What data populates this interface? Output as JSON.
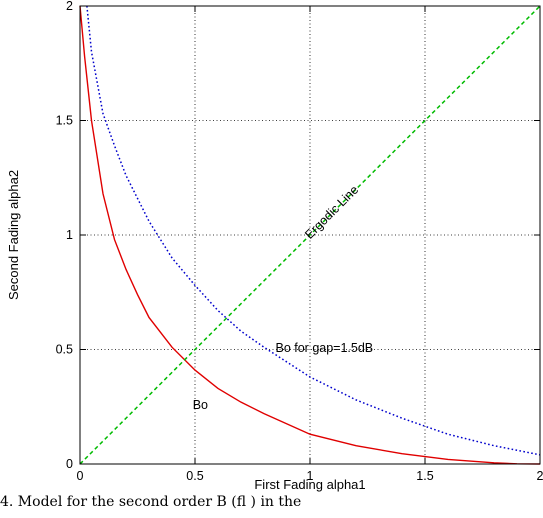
{
  "chart_data": {
    "type": "line",
    "title": "",
    "xlabel": "First Fading alpha1",
    "ylabel": "Second Fading alpha2",
    "xlim": [
      0,
      2
    ],
    "ylim": [
      0,
      2
    ],
    "xticks": [
      "0",
      "0.5",
      "1",
      "1.5",
      "2"
    ],
    "yticks": [
      "0",
      "0.5",
      "1",
      "1.5",
      "2"
    ],
    "grid": true,
    "series": [
      {
        "label": "Bo",
        "color": "#e00000",
        "style": "solid",
        "x": [
          0.0,
          0.02,
          0.05,
          0.1,
          0.15,
          0.2,
          0.25,
          0.3,
          0.4,
          0.5,
          0.6,
          0.7,
          0.8,
          1.0,
          1.2,
          1.4,
          1.6,
          1.8,
          1.9,
          2.0
        ],
        "y": [
          2.0,
          1.78,
          1.5,
          1.18,
          0.98,
          0.85,
          0.74,
          0.64,
          0.51,
          0.41,
          0.33,
          0.27,
          0.22,
          0.13,
          0.08,
          0.045,
          0.02,
          0.005,
          0.001,
          0.0
        ]
      },
      {
        "label": "Bo for gap=1.5dB",
        "color": "#0000cc",
        "style": "dotted",
        "x": [
          0.03,
          0.05,
          0.1,
          0.15,
          0.2,
          0.3,
          0.4,
          0.5,
          0.6,
          0.7,
          0.8,
          1.0,
          1.2,
          1.4,
          1.6,
          1.8,
          2.0
        ],
        "y": [
          2.0,
          1.8,
          1.53,
          1.39,
          1.26,
          1.06,
          0.9,
          0.78,
          0.67,
          0.58,
          0.51,
          0.38,
          0.28,
          0.2,
          0.13,
          0.08,
          0.04
        ]
      },
      {
        "label": "Ergodic Line",
        "color": "#00bb00",
        "style": "dashed",
        "x": [
          0,
          2
        ],
        "y": [
          0,
          2
        ]
      }
    ],
    "annotations": [
      {
        "text": "Ergodic Line",
        "x": 1.0,
        "y": 0.98,
        "rotation": -45
      },
      {
        "text": "Bo for gap=1.5dB",
        "x": 0.85,
        "y": 0.49,
        "rotation": 0
      },
      {
        "text": "Bo",
        "x": 0.49,
        "y": 0.24,
        "rotation": 0
      }
    ]
  },
  "caption": {
    "text": "4. Model for the second order B (fl ) in the"
  }
}
